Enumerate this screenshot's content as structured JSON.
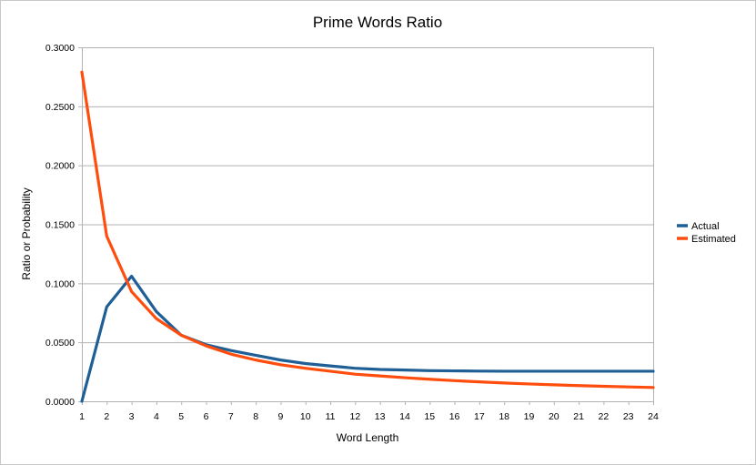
{
  "chart_data": {
    "type": "line",
    "title": "Prime Words Ratio",
    "xlabel": "Word Length",
    "ylabel": "Ratio or Probability",
    "x": [
      1,
      2,
      3,
      4,
      5,
      6,
      7,
      8,
      9,
      10,
      11,
      12,
      13,
      14,
      15,
      16,
      17,
      18,
      19,
      20,
      21,
      22,
      23,
      24
    ],
    "x_tick_labels": [
      "1",
      "2",
      "3",
      "4",
      "5",
      "6",
      "7",
      "8",
      "9",
      "10",
      "11",
      "12",
      "13",
      "14",
      "15",
      "16",
      "17",
      "18",
      "19",
      "20",
      "21",
      "22",
      "23",
      "24"
    ],
    "ylim": [
      0,
      0.3
    ],
    "y_ticks": [
      0,
      0.05,
      0.1,
      0.15,
      0.2,
      0.25,
      0.3
    ],
    "y_tick_labels": [
      "0.0000",
      "0.0500",
      "0.1000",
      "0.1500",
      "0.2000",
      "0.2500",
      "0.3000"
    ],
    "grid": "horizontal",
    "legend_position": "right",
    "series": [
      {
        "name": "Actual",
        "color": "#1f5f96",
        "values": [
          0.0,
          0.08,
          0.106,
          0.076,
          0.056,
          0.048,
          0.043,
          0.039,
          0.035,
          0.032,
          0.03,
          0.028,
          0.027,
          0.0265,
          0.026,
          0.0258,
          0.0256,
          0.0255,
          0.0255,
          0.0255,
          0.0255,
          0.0255,
          0.0255,
          0.0255
        ]
      },
      {
        "name": "Estimated",
        "color": "#ff4d0d",
        "values": [
          0.279,
          0.14,
          0.093,
          0.07,
          0.056,
          0.047,
          0.04,
          0.035,
          0.031,
          0.028,
          0.0255,
          0.023,
          0.0215,
          0.02,
          0.0187,
          0.0175,
          0.0165,
          0.0155,
          0.0147,
          0.014,
          0.0133,
          0.0127,
          0.0122,
          0.0117
        ]
      }
    ]
  }
}
